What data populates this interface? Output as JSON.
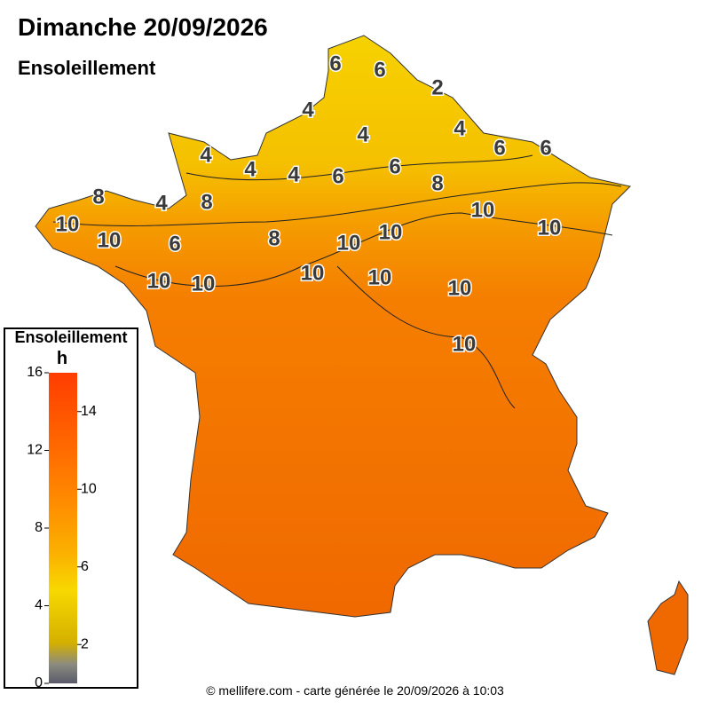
{
  "title": "Dimanche 20/09/2026",
  "subtitle": "Ensoleillement",
  "contour_labels": [
    6,
    6,
    2,
    4,
    4,
    4,
    6,
    6,
    4,
    4,
    4,
    6,
    6,
    8,
    8,
    4,
    8,
    10,
    10,
    10,
    6,
    8,
    10,
    10,
    10,
    10,
    10,
    10,
    10,
    10,
    10
  ],
  "legend": {
    "title": "Ensoleillement",
    "unit": "h",
    "range": [
      0,
      16
    ],
    "ticks_left": [
      0,
      4,
      8,
      12,
      16
    ],
    "ticks_right": [
      2,
      6,
      10,
      14
    ]
  },
  "footer": "© mellifere.com - carte générée le 20/09/2026 à 10:03"
}
